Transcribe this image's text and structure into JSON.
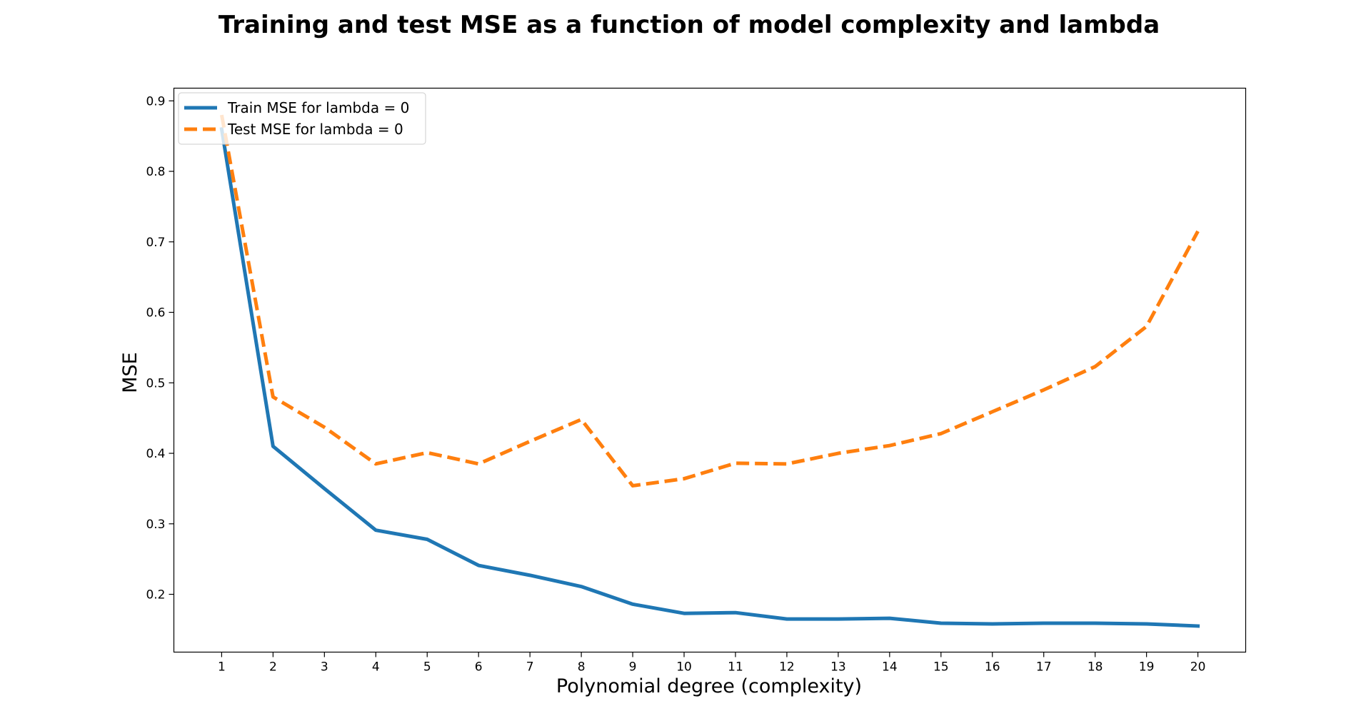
{
  "chart_data": {
    "type": "line",
    "title": "Training and test MSE as a function of model complexity and lambda",
    "xlabel": "Polynomial degree (complexity)",
    "ylabel": "MSE",
    "x": [
      1,
      2,
      3,
      4,
      5,
      6,
      7,
      8,
      9,
      10,
      11,
      12,
      13,
      14,
      15,
      16,
      17,
      18,
      19,
      20
    ],
    "xlim": [
      0.07,
      20.93
    ],
    "ylim": [
      0.118,
      0.918
    ],
    "yticks": [
      0.2,
      0.3,
      0.4,
      0.5,
      0.6,
      0.7,
      0.8,
      0.9
    ],
    "ytick_labels": [
      "0.2",
      "0.3",
      "0.4",
      "0.5",
      "0.6",
      "0.7",
      "0.8",
      "0.9"
    ],
    "xtick_labels": [
      "1",
      "2",
      "3",
      "4",
      "5",
      "6",
      "7",
      "8",
      "9",
      "10",
      "11",
      "12",
      "13",
      "14",
      "15",
      "16",
      "17",
      "18",
      "19",
      "20"
    ],
    "grid": false,
    "legend_position": "top-left",
    "series": [
      {
        "name": "Train MSE for lambda = 0",
        "color": "#1f77b4",
        "style": "solid",
        "values": [
          0.86,
          0.41,
          0.35,
          0.291,
          0.278,
          0.241,
          0.227,
          0.211,
          0.186,
          0.173,
          0.174,
          0.165,
          0.165,
          0.166,
          0.159,
          0.158,
          0.159,
          0.159,
          0.158,
          0.155
        ]
      },
      {
        "name": "Test MSE for lambda = 0",
        "color": "#ff7f0e",
        "style": "dashed",
        "values": [
          0.88,
          0.48,
          0.437,
          0.385,
          0.401,
          0.385,
          0.417,
          0.448,
          0.354,
          0.364,
          0.386,
          0.385,
          0.4,
          0.411,
          0.428,
          0.459,
          0.49,
          0.523,
          0.58,
          0.715
        ]
      }
    ]
  }
}
